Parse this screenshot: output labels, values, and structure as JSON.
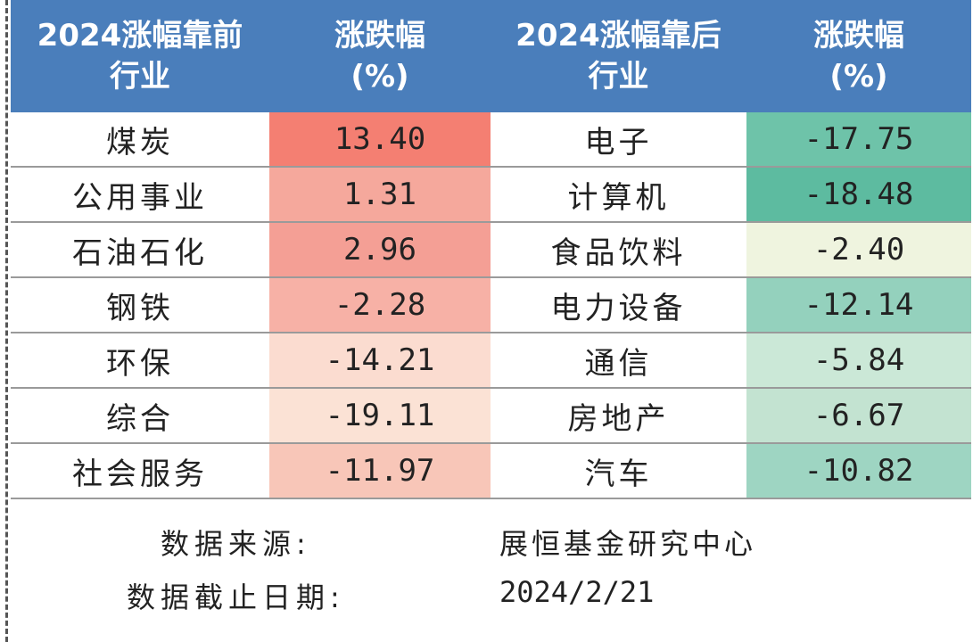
{
  "header": {
    "col1": "2024涨幅靠前\n行业",
    "col2": "涨跌幅\n(%)",
    "col3": "2024涨幅靠后\n行业",
    "col4": "涨跌幅\n(%)"
  },
  "rows": [
    {
      "top_industry": "煤炭",
      "top_change": "13.40",
      "bottom_industry": "电子",
      "bottom_change": "-17.75"
    },
    {
      "top_industry": "公用事业",
      "top_change": "1.31",
      "bottom_industry": "计算机",
      "bottom_change": "-18.48"
    },
    {
      "top_industry": "石油石化",
      "top_change": "2.96",
      "bottom_industry": "食品饮料",
      "bottom_change": "-2.40"
    },
    {
      "top_industry": "钢铁",
      "top_change": "-2.28",
      "bottom_industry": "电力设备",
      "bottom_change": "-12.14"
    },
    {
      "top_industry": "环保",
      "top_change": "-14.21",
      "bottom_industry": "通信",
      "bottom_change": "-5.84"
    },
    {
      "top_industry": "综合",
      "top_change": "-19.11",
      "bottom_industry": "房地产",
      "bottom_change": "-6.67"
    },
    {
      "top_industry": "社会服务",
      "top_change": "-11.97",
      "bottom_industry": "汽车",
      "bottom_change": "-10.82"
    }
  ],
  "colors": {
    "header_bg": "#4a7ebb",
    "top_change_bg": [
      "#f47f72",
      "#f5a89c",
      "#f49f95",
      "#f7b1a6",
      "#fbdcd0",
      "#fbe2d5",
      "#f8c6b8"
    ],
    "bottom_change_bg": [
      "#6ec3a9",
      "#5dbba0",
      "#eff4df",
      "#94d1bd",
      "#cbe8d7",
      "#c3e3d1",
      "#9ed5c2"
    ]
  },
  "footer": {
    "source_label": "数据来源:",
    "source_value": "展恒基金研究中心",
    "date_label": "数据截止日期:",
    "date_value": "2024/2/21"
  }
}
